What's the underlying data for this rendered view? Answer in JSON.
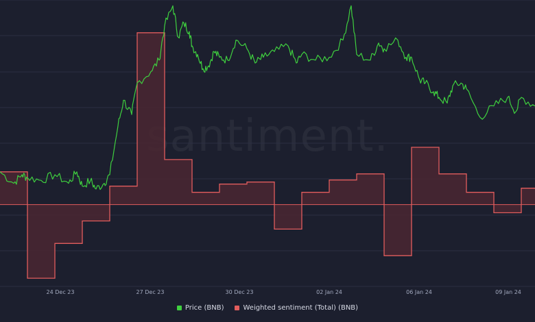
{
  "chart_data": {
    "type": "line",
    "title": "",
    "xlabel": "",
    "ylabel": "",
    "watermark": "santiment.",
    "grid": true,
    "legend_position": "bottom-center",
    "x_tick_labels": [
      "24 Dec 23",
      "27 Dec 23",
      "30 Dec 23",
      "02 Jan 24",
      "06 Jan 24",
      "09 Jan 24"
    ],
    "colors": {
      "background": "#1c1f2e",
      "price": "#3fd03f",
      "sentiment_line": "#e25d5d",
      "sentiment_fill": "#4a2731",
      "grid": "#2b2f42"
    },
    "series": [
      {
        "name": "Price (BNB)",
        "kind": "line",
        "x_range": [
          0,
          19.5
        ],
        "y_range": [
          0,
          100
        ],
        "x": [
          0,
          0.5,
          0.8,
          1,
          1.5,
          2,
          2.5,
          2.8,
          3,
          3.3,
          3.5,
          3.8,
          4,
          4.3,
          4.5,
          4.8,
          5,
          5.5,
          5.8,
          6,
          6.3,
          6.5,
          6.7,
          6.9,
          7,
          7.2,
          7.4,
          7.6,
          7.8,
          8,
          8.3,
          8.6,
          9,
          9.3,
          9.6,
          10,
          10.5,
          10.8,
          11,
          11.5,
          12,
          12.5,
          12.8,
          13,
          13.5,
          13.8,
          14,
          14.5,
          14.8,
          15,
          15.3,
          15.5,
          15.8,
          16,
          16.3,
          16.5,
          16.8,
          17,
          17.5,
          18,
          18.5,
          18.8,
          19,
          19.5
        ],
        "values": [
          40,
          36,
          39,
          38,
          37,
          39,
          36,
          40,
          35,
          37,
          34,
          36,
          39,
          56,
          65,
          60,
          71,
          75,
          79,
          91,
          98,
          87,
          92,
          89,
          84,
          81,
          76,
          77,
          82,
          80,
          79,
          86,
          83,
          78,
          80,
          82,
          84,
          78,
          81,
          79,
          80,
          86,
          98,
          81,
          79,
          85,
          83,
          86,
          80,
          80,
          72,
          71,
          68,
          66,
          64,
          70,
          71,
          69,
          59,
          63,
          66,
          61,
          66,
          63
        ]
      },
      {
        "name": "Weighted sentiment (Total) (BNB)",
        "kind": "step-area",
        "x_range": [
          0,
          19.5
        ],
        "y_range": [
          -20,
          50
        ],
        "x": [
          0,
          1,
          2,
          3,
          4,
          5,
          6,
          7,
          8,
          9,
          10,
          11,
          12,
          13,
          14,
          15,
          16,
          17,
          18,
          19
        ],
        "values": [
          8,
          -18,
          -9.5,
          -4,
          4.5,
          42,
          11,
          3,
          5,
          5.5,
          -6,
          3,
          6,
          7.5,
          -12.5,
          14,
          7.5,
          3,
          -2,
          4
        ]
      }
    ]
  }
}
